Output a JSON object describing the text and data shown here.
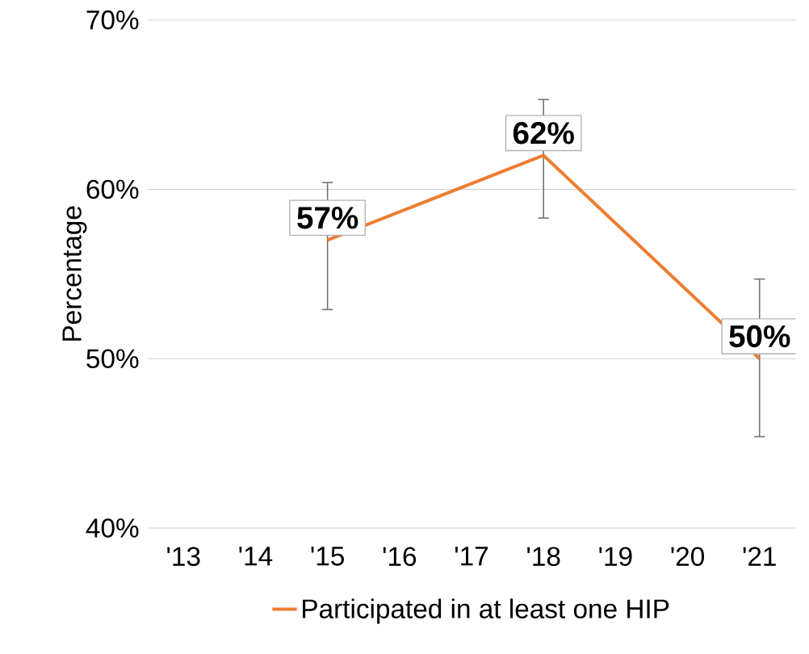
{
  "chart_data": {
    "type": "line",
    "ylabel": "Percentage",
    "categories": [
      "'13",
      "'14",
      "'15",
      "'16",
      "'17",
      "'18",
      "'19",
      "'20",
      "'21"
    ],
    "series": [
      {
        "name": "Participated in at least one HIP",
        "color": "#ed7d31",
        "values": [
          null,
          null,
          57,
          null,
          null,
          62,
          null,
          null,
          50
        ],
        "errors": [
          null,
          null,
          [
            52.9,
            60.4
          ],
          null,
          null,
          [
            58.3,
            65.3
          ],
          null,
          null,
          [
            45.4,
            54.7
          ]
        ],
        "value_labels": [
          null,
          null,
          "57%",
          null,
          null,
          "62%",
          null,
          null,
          "50%"
        ]
      }
    ],
    "ylim": [
      40,
      70
    ],
    "yticks": [
      {
        "value": 40,
        "label": "40%"
      },
      {
        "value": 50,
        "label": "50%"
      },
      {
        "value": 60,
        "label": "60%"
      },
      {
        "value": 70,
        "label": "70%"
      }
    ],
    "grid": "y",
    "legend": "bottom",
    "marker": "none",
    "line_style": "solid"
  }
}
